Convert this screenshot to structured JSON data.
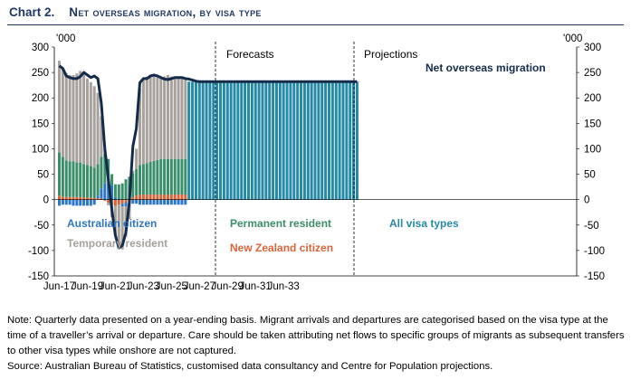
{
  "header": {
    "chart_number": "Chart 2.",
    "title": "Net overseas migration, by visa type"
  },
  "chart_data": {
    "type": "bar",
    "title": "Net overseas migration, by visa type",
    "unit_left": "'000",
    "unit_right": "'000",
    "ylim": [
      -150,
      300
    ],
    "yticks": [
      -150,
      -100,
      -50,
      0,
      50,
      100,
      150,
      200,
      250,
      300
    ],
    "x_tick_labels": [
      "Jun-17",
      "Jun-19",
      "Jun-21",
      "Jun-23",
      "Jun-25",
      "Jun-27",
      "Jun-29",
      "Jun-31",
      "Jun-33"
    ],
    "section_labels": [
      "Forecasts",
      "Projections"
    ],
    "line_label": "Net overseas migration",
    "legend_labels": {
      "australian": "Australian citizen",
      "temporary": "Temporary resident",
      "permanent": "Permanent resident",
      "nz": "New Zealand citizen",
      "all": "All visa types"
    },
    "colors": {
      "temporary": "#a6a19b",
      "permanent": "#3a8f6a",
      "australian": "#2e76c6",
      "nz": "#d9643a",
      "all": "#2689a6",
      "line": "#142c4c"
    },
    "series": [
      {
        "name": "Temporary resident",
        "values": [
          180,
          175,
          172,
          170,
          170,
          175,
          180,
          175,
          170,
          165,
          160,
          140,
          80,
          10,
          -5,
          -25,
          -60,
          -85,
          -85,
          -60,
          -30,
          5,
          40,
          150,
          165,
          170,
          170,
          168,
          162,
          160,
          162,
          165,
          162,
          160,
          158,
          158,
          155
        ]
      },
      {
        "name": "Permanent resident",
        "values": [
          85,
          78,
          72,
          70,
          70,
          68,
          68,
          66,
          64,
          62,
          60,
          62,
          62,
          58,
          45,
          22,
          25,
          30,
          32,
          40,
          45,
          48,
          52,
          58,
          60,
          62,
          64,
          66,
          68,
          70,
          70,
          70,
          70,
          70,
          70,
          70,
          70
        ]
      },
      {
        "name": "Australian citizen",
        "values": [
          -12,
          -10,
          -10,
          -10,
          -12,
          -12,
          -12,
          -12,
          -12,
          -12,
          -10,
          5,
          20,
          32,
          35,
          28,
          5,
          0,
          -5,
          -8,
          -8,
          -8,
          -8,
          -10,
          -10,
          -10,
          -10,
          -10,
          -10,
          -10,
          -10,
          -10,
          -10,
          -10,
          -10,
          -10,
          -10
        ]
      },
      {
        "name": "New Zealand citizen",
        "values": [
          8,
          6,
          5,
          5,
          5,
          5,
          5,
          4,
          4,
          4,
          3,
          3,
          2,
          -2,
          -6,
          -10,
          -12,
          -10,
          -8,
          -5,
          0,
          4,
          8,
          10,
          10,
          10,
          10,
          10,
          10,
          10,
          10,
          10,
          10,
          10,
          10,
          10,
          10
        ]
      },
      {
        "name": "All visa types",
        "values": [
          232,
          232,
          232,
          232,
          232,
          232,
          232,
          232,
          232,
          232,
          232,
          232,
          232,
          232,
          232,
          232,
          232,
          232,
          232,
          232,
          232,
          232,
          232,
          232,
          232,
          232,
          232,
          232,
          232,
          232,
          232,
          232,
          232,
          232,
          232,
          232,
          232,
          232,
          232,
          232,
          232,
          232,
          232,
          232,
          232,
          232,
          232,
          232,
          232
        ]
      },
      {
        "name": "Net overseas migration",
        "values": [
          263,
          258,
          243,
          240,
          238,
          238,
          242,
          250,
          245,
          240,
          243,
          238,
          190,
          100,
          40,
          -20,
          -70,
          -95,
          -90,
          -65,
          -5,
          105,
          140,
          230,
          238,
          238,
          243,
          245,
          243,
          240,
          237,
          236,
          238,
          240,
          240,
          240,
          238,
          237,
          235,
          233,
          232,
          232,
          232,
          232,
          232,
          232,
          232,
          232,
          232,
          232,
          232,
          232,
          232,
          232,
          232,
          232,
          232,
          232,
          232,
          232,
          232,
          232,
          232,
          232,
          232,
          232,
          232,
          232,
          232,
          232,
          232,
          232,
          232,
          232,
          232,
          232,
          232,
          232,
          232,
          232,
          232,
          232,
          232,
          232,
          232,
          232
        ]
      }
    ]
  },
  "notes": {
    "note": "Note: Quarterly data presented on a year-ending basis. Migrant arrivals and departures are categorised based on the visa type at the time of a traveller’s arrival or departure. Care should be taken attributing net flows to specific groups of migrants as subsequent transfers to other visa types while onshore are not captured.",
    "source": "Source: Australian Bureau of Statistics, customised data consultancy and Centre for Population projections."
  }
}
